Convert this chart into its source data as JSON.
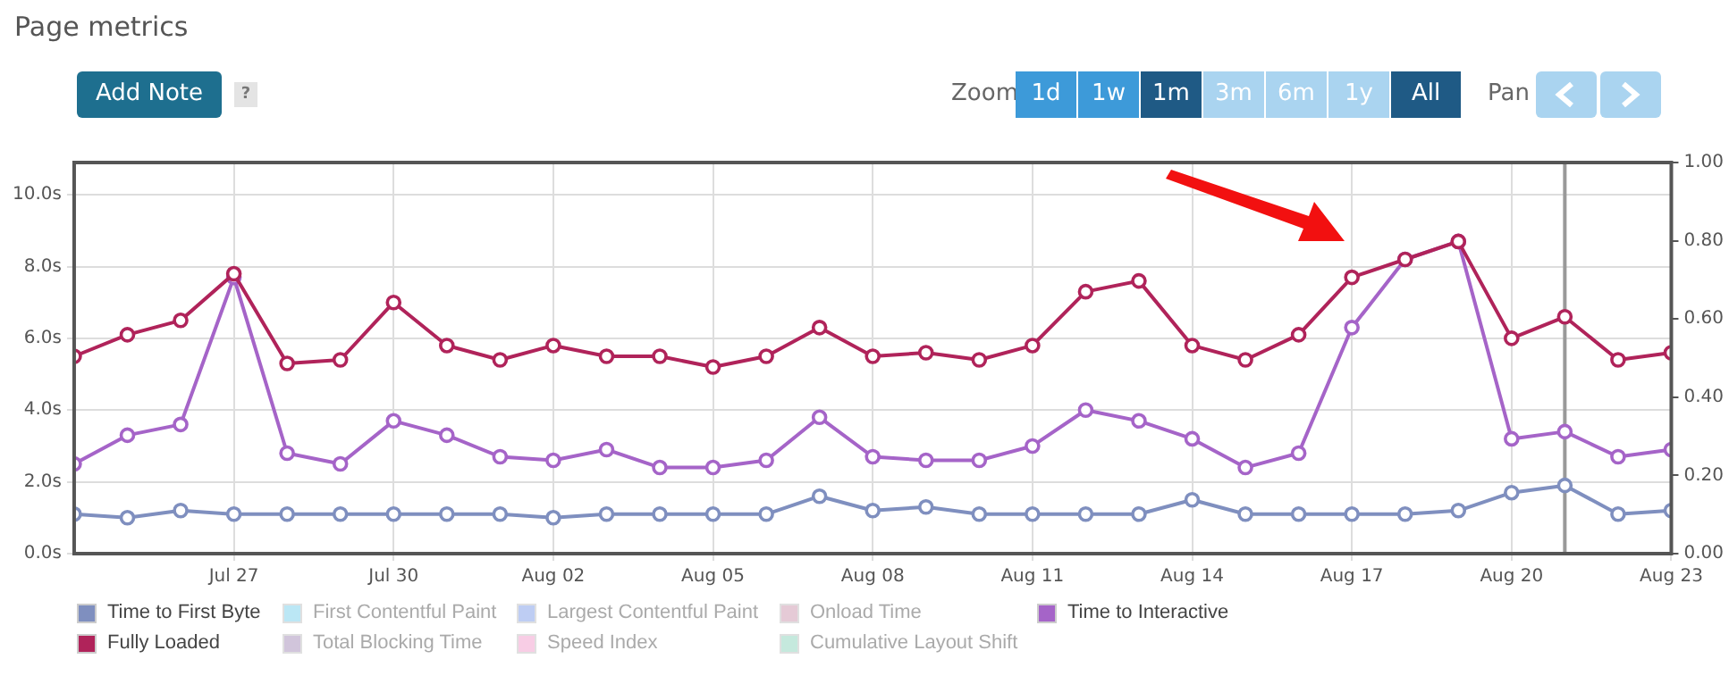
{
  "chart_data": {
    "type": "line",
    "title": "Page metrics",
    "annotations": [
      "Add Note",
      "?",
      "Zoom",
      "1d",
      "1w",
      "1m",
      "3m",
      "6m",
      "1y",
      "All",
      "Pan"
    ],
    "x": [
      "--07-24",
      "--07-25",
      "--07-26",
      "--07-27",
      "--07-28",
      "--07-29",
      "--07-30",
      "--07-31",
      "--08-01",
      "--08-02",
      "--08-03",
      "--08-04",
      "--08-05",
      "--08-06",
      "--08-07",
      "--08-08",
      "--08-09",
      "--08-10",
      "--08-11",
      "--08-12",
      "--08-13",
      "--08-14",
      "--08-15",
      "--08-16",
      "--08-17",
      "--08-18",
      "--08-19",
      "--08-20",
      "--08-21",
      "--08-22",
      "--08-23"
    ],
    "series": [
      {
        "name": "Time to First Byte",
        "color": "#7f8fbf",
        "values": [
          1.1,
          1.0,
          1.2,
          1.1,
          1.1,
          1.1,
          1.1,
          1.1,
          1.1,
          1.0,
          1.1,
          1.1,
          1.1,
          1.1,
          1.6,
          1.2,
          1.3,
          1.1,
          1.1,
          1.1,
          1.1,
          1.5,
          1.1,
          1.1,
          1.1,
          1.1,
          1.2,
          1.7,
          1.9,
          1.1,
          1.2
        ]
      },
      {
        "name": "First Contentful Paint",
        "color": "#8fd8f0",
        "values": [
          null,
          null,
          null,
          null,
          null,
          null,
          null,
          null,
          null,
          null,
          null,
          null,
          null,
          null,
          null,
          null,
          null,
          null,
          null,
          null,
          null,
          null,
          null,
          null,
          null,
          null,
          null,
          null,
          null,
          null,
          null
        ]
      },
      {
        "name": "Largest Contentful Paint",
        "color": "#94acec",
        "values": [
          null,
          null,
          null,
          null,
          null,
          null,
          null,
          null,
          null,
          null,
          null,
          null,
          null,
          null,
          null,
          null,
          null,
          null,
          null,
          null,
          null,
          null,
          null,
          null,
          null,
          null,
          null,
          null,
          null,
          null,
          null
        ]
      },
      {
        "name": "Onload Time",
        "color": "#d4a8bc",
        "values": [
          null,
          null,
          null,
          null,
          null,
          null,
          null,
          null,
          null,
          null,
          null,
          null,
          null,
          null,
          null,
          null,
          null,
          null,
          null,
          null,
          null,
          null,
          null,
          null,
          null,
          null,
          null,
          null,
          null,
          null,
          null
        ]
      },
      {
        "name": "Time to Interactive",
        "color": "#a564c8",
        "values": [
          2.5,
          3.3,
          3.6,
          7.7,
          2.8,
          2.5,
          3.7,
          3.3,
          2.7,
          2.6,
          2.9,
          2.4,
          2.4,
          2.6,
          3.8,
          2.7,
          2.6,
          2.6,
          3.0,
          4.0,
          3.7,
          3.2,
          2.4,
          2.8,
          6.3,
          8.2,
          8.7,
          3.2,
          3.4,
          2.7,
          2.9
        ]
      },
      {
        "name": "Fully Loaded",
        "color": "#b0235a",
        "values": [
          5.5,
          6.1,
          6.5,
          7.8,
          5.3,
          5.4,
          7.0,
          5.8,
          5.4,
          5.8,
          5.5,
          5.5,
          5.2,
          5.5,
          6.3,
          5.5,
          5.6,
          5.4,
          5.8,
          7.3,
          7.6,
          5.8,
          5.4,
          6.1,
          7.7,
          8.2,
          8.7,
          6.0,
          6.6,
          5.4,
          5.6
        ]
      },
      {
        "name": "Total Blocking Time",
        "color": "#b4a0c4",
        "values": [
          null,
          null,
          null,
          null,
          null,
          null,
          null,
          null,
          null,
          null,
          null,
          null,
          null,
          null,
          null,
          null,
          null,
          null,
          null,
          null,
          null,
          null,
          null,
          null,
          null,
          null,
          null,
          null,
          null,
          null,
          null
        ]
      },
      {
        "name": "Speed Index",
        "color": "#f4acd4",
        "values": [
          null,
          null,
          null,
          null,
          null,
          null,
          null,
          null,
          null,
          null,
          null,
          null,
          null,
          null,
          null,
          null,
          null,
          null,
          null,
          null,
          null,
          null,
          null,
          null,
          null,
          null,
          null,
          null,
          null,
          null,
          null
        ]
      },
      {
        "name": "Cumulative Layout Shift",
        "color": "#a0dcc8",
        "values": [
          null,
          null,
          null,
          null,
          null,
          null,
          null,
          null,
          null,
          null,
          null,
          null,
          null,
          null,
          null,
          null,
          null,
          null,
          null,
          null,
          null,
          null,
          null,
          null,
          null,
          null,
          null,
          null,
          null,
          null,
          null
        ]
      }
    ],
    "xlim": [
      "--07-24",
      "--08-23"
    ],
    "xticks": [
      {
        "value": "--07-27",
        "label": "Jul 27"
      },
      {
        "value": "--07-30",
        "label": "Jul 30"
      },
      {
        "value": "--08-02",
        "label": "Aug 02"
      },
      {
        "value": "--08-05",
        "label": "Aug 05"
      },
      {
        "value": "--08-08",
        "label": "Aug 08"
      },
      {
        "value": "--08-11",
        "label": "Aug 11"
      },
      {
        "value": "--08-14",
        "label": "Aug 14"
      },
      {
        "value": "--08-17",
        "label": "Aug 17"
      },
      {
        "value": "--08-20",
        "label": "Aug 20"
      },
      {
        "value": "--08-23",
        "label": "Aug 23"
      }
    ],
    "ylim": [
      0,
      10.9
    ],
    "yticks": [
      {
        "value": 0,
        "label": "0.0s"
      },
      {
        "value": 2,
        "label": "2.0s"
      },
      {
        "value": 4,
        "label": "4.0s"
      },
      {
        "value": 6,
        "label": "6.0s"
      },
      {
        "value": 8,
        "label": "8.0s"
      },
      {
        "value": 10,
        "label": "10.0s"
      }
    ],
    "y2lim": [
      0,
      1
    ],
    "y2ticks": [
      {
        "value": 0,
        "label": "0.00"
      },
      {
        "value": 0.2,
        "label": "0.20"
      },
      {
        "value": 0.4,
        "label": "0.40"
      },
      {
        "value": 0.6,
        "label": "0.60"
      },
      {
        "value": 0.8,
        "label": "0.80"
      },
      {
        "value": 1,
        "label": "1.00"
      }
    ],
    "ref_lines": [
      {
        "axis": "x",
        "value": "--08-21",
        "color": "#999999"
      }
    ],
    "grid": true,
    "legend": "bottom",
    "marker": "circle",
    "line_style": "solid"
  }
}
